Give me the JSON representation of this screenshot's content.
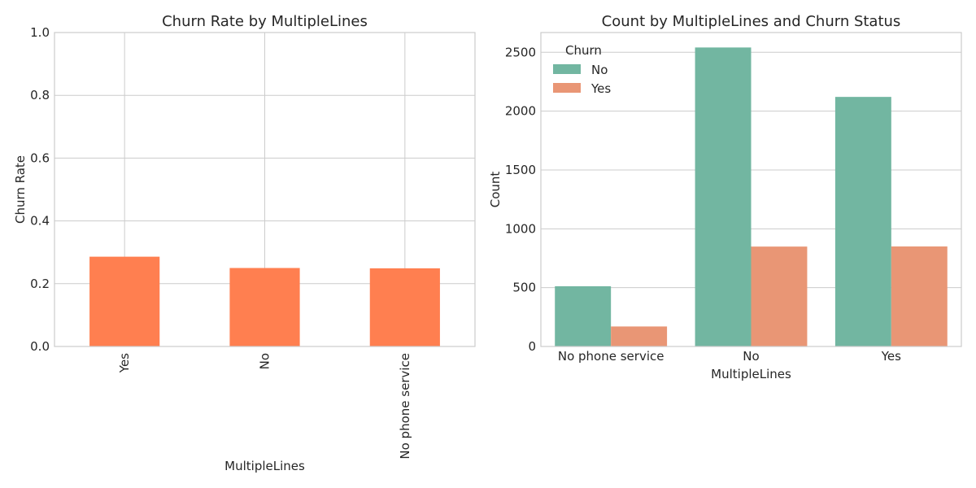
{
  "colors": {
    "rate_bar": "#ff7f50",
    "series_no": "#72b6a1",
    "series_yes": "#e99675"
  },
  "chart_data": [
    {
      "type": "bar",
      "title": "Churn Rate by MultipleLines",
      "xlabel": "MultipleLines",
      "ylabel": "Churn Rate",
      "categories": [
        "Yes",
        "No",
        "No phone service"
      ],
      "values": [
        0.286,
        0.25,
        0.249
      ],
      "ylim": [
        0,
        1.0
      ],
      "yticks": [
        "0.0",
        "0.2",
        "0.4",
        "0.6",
        "0.8",
        "1.0"
      ],
      "xtick_rotation": "vertical",
      "grid": true
    },
    {
      "type": "bar",
      "title": "Count by MultipleLines and Churn Status",
      "xlabel": "MultipleLines",
      "ylabel": "Count",
      "categories": [
        "No phone service",
        "No",
        "Yes"
      ],
      "series": [
        {
          "name": "No",
          "values": [
            512,
            2541,
            2121
          ]
        },
        {
          "name": "Yes",
          "values": [
            170,
            849,
            850
          ]
        }
      ],
      "ylim": [
        0,
        2668
      ],
      "yticks": [
        "0",
        "500",
        "1000",
        "1500",
        "2000",
        "2500"
      ],
      "legend_title": "Churn",
      "legend_position": "upper-left",
      "grid": true
    }
  ]
}
